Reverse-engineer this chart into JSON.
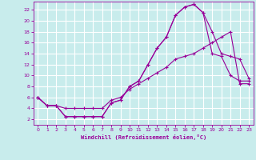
{
  "background_color": "#c8ecec",
  "grid_color": "#ffffff",
  "line_color": "#990099",
  "xlabel": "Windchill (Refroidissement éolien,°C)",
  "xlim": [
    -0.5,
    23.5
  ],
  "ylim": [
    1,
    23.5
  ],
  "xticks": [
    0,
    1,
    2,
    3,
    4,
    5,
    6,
    7,
    8,
    9,
    10,
    11,
    12,
    13,
    14,
    15,
    16,
    17,
    18,
    19,
    20,
    21,
    22,
    23
  ],
  "yticks": [
    2,
    4,
    6,
    8,
    10,
    12,
    14,
    16,
    18,
    20,
    22
  ],
  "line1_x": [
    0,
    1,
    2,
    3,
    4,
    5,
    6,
    7,
    8,
    9,
    10,
    11,
    12,
    13,
    14,
    15,
    16,
    17,
    18,
    19,
    20,
    21,
    22,
    23
  ],
  "line1_y": [
    6,
    4.5,
    4.5,
    2.5,
    2.5,
    2.5,
    2.5,
    2.5,
    5,
    5.5,
    8,
    9,
    12,
    15,
    17,
    21,
    22.5,
    23,
    21.5,
    14,
    13.5,
    10,
    9,
    9
  ],
  "line2_x": [
    0,
    1,
    2,
    3,
    4,
    5,
    6,
    7,
    8,
    9,
    10,
    11,
    12,
    13,
    14,
    15,
    16,
    17,
    18,
    19,
    20,
    21,
    22,
    23
  ],
  "line2_y": [
    6,
    4.5,
    4.5,
    2.5,
    2.5,
    2.5,
    2.5,
    2.5,
    5,
    5.5,
    8,
    9,
    12,
    15,
    17,
    21,
    22.5,
    23,
    21.5,
    18,
    14,
    13.5,
    13,
    9.5
  ],
  "line3_x": [
    0,
    1,
    2,
    3,
    4,
    5,
    6,
    7,
    8,
    9,
    10,
    11,
    12,
    13,
    14,
    15,
    16,
    17,
    18,
    19,
    20,
    21,
    22,
    23
  ],
  "line3_y": [
    6,
    4.5,
    4.5,
    4,
    4,
    4,
    4,
    4,
    5.5,
    6,
    7.5,
    8.5,
    9.5,
    10.5,
    11.5,
    13,
    13.5,
    14,
    15,
    16,
    17,
    18,
    8.5,
    8.5
  ]
}
